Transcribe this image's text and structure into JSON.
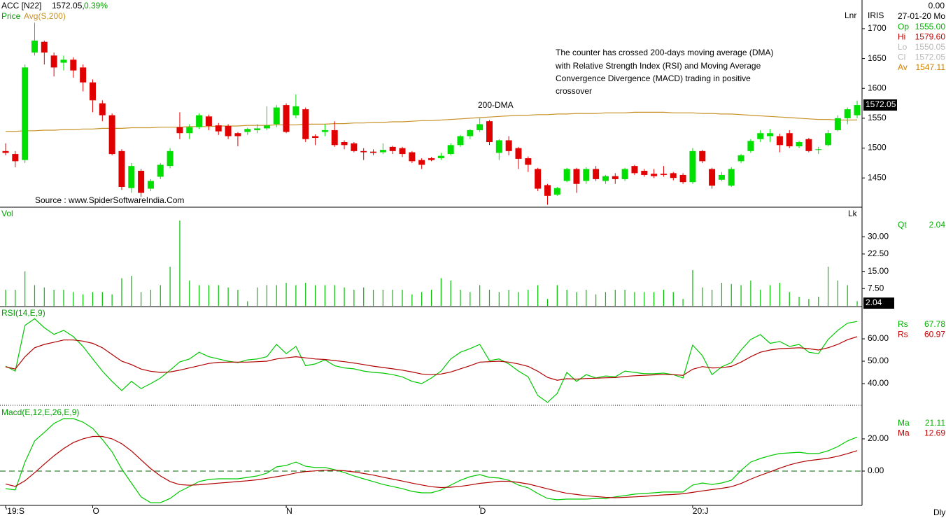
{
  "header": {
    "symbol": "ACC [N22]",
    "last": "1572.05,",
    "change": "0.39%",
    "axis_top": "Lnr",
    "axis_vol": "Lk",
    "period": "Dly"
  },
  "annotations": {
    "lines": [
      "The counter has crossed 200-days moving average (DMA)",
      "with Relative Strength Index (RSI) and Moving Average",
      "Convergence Divergence (MACD) trading in positive",
      "crossover"
    ],
    "dma_label": "200-DMA",
    "source": "Source : www.SpiderSoftwareIndia.Com",
    "price_tag": "1572.05",
    "vol_tag": "2.04"
  },
  "info": {
    "time": "0.00",
    "date": "27-01-20 Mo",
    "iris": "IRIS",
    "price_rows": [
      {
        "label": "Op",
        "value": "1555.00",
        "color": "#00b000"
      },
      {
        "label": "Hi",
        "value": "1579.60",
        "color": "#c00000"
      },
      {
        "label": "Lo",
        "value": "1550.05",
        "color": "#b8b8b8"
      },
      {
        "label": "Cl",
        "value": "1572.05",
        "color": "#b8b8b8"
      },
      {
        "label": "Av",
        "value": "1547.11",
        "color": "#d08000"
      }
    ],
    "vol_rows": [
      {
        "label": "Qt",
        "value": "2.04",
        "color": "#00b000"
      }
    ],
    "rsi_rows": [
      {
        "label": "Rs",
        "value": "67.78",
        "color": "#00b000"
      },
      {
        "label": "Rs",
        "value": "60.97",
        "color": "#c00000"
      }
    ],
    "macd_rows": [
      {
        "label": "Ma",
        "value": "21.11",
        "color": "#00b000"
      },
      {
        "label": "Ma",
        "value": "12.69",
        "color": "#c00000"
      }
    ]
  },
  "chart_data": [
    {
      "type": "candlestick",
      "title": "Price",
      "title_color": "#00a000",
      "up_color": "#00e000",
      "down_color": "#e00000",
      "categories": [
        "'19:S",
        null,
        null,
        null,
        null,
        null,
        null,
        null,
        null,
        "O",
        null,
        null,
        null,
        null,
        null,
        null,
        null,
        null,
        null,
        null,
        null,
        null,
        null,
        null,
        null,
        null,
        null,
        null,
        null,
        "N",
        null,
        null,
        null,
        null,
        null,
        null,
        null,
        null,
        null,
        null,
        null,
        null,
        null,
        null,
        null,
        null,
        null,
        null,
        null,
        "D",
        null,
        null,
        null,
        null,
        null,
        null,
        null,
        null,
        null,
        null,
        null,
        null,
        null,
        null,
        null,
        null,
        null,
        null,
        null,
        null,
        null,
        "20:J",
        null,
        null,
        null,
        null,
        null,
        null,
        null,
        null,
        null,
        null,
        null,
        null,
        null,
        null,
        null,
        null,
        null
      ],
      "open": [
        1495,
        1490,
        1480,
        1660,
        1678,
        1655,
        1643,
        1648,
        1635,
        1610,
        1575,
        1555,
        1495,
        1433,
        1462,
        1432,
        1452,
        1470,
        1535,
        1525,
        1535,
        1553,
        1538,
        1537,
        1525,
        1527,
        1530,
        1533,
        1540,
        1572,
        1555,
        1565,
        1520,
        1527,
        1530,
        1510,
        1508,
        1495,
        1494,
        1493,
        1502,
        1500,
        1493,
        1480,
        1483,
        1483,
        1490,
        1505,
        1520,
        1530,
        1545,
        1492,
        1513,
        1500,
        1483,
        1465,
        1438,
        1422,
        1445,
        1465,
        1445,
        1465,
        1445,
        1453,
        1448,
        1470,
        1462,
        1457,
        1457,
        1458,
        1455,
        1443,
        1495,
        1465,
        1447,
        1437,
        1478,
        1495,
        1515,
        1520,
        1520,
        1525,
        1503,
        1515,
        1497,
        1505,
        1530,
        1550,
        1555
      ],
      "high": [
        1508,
        1495,
        1640,
        1710,
        1680,
        1660,
        1655,
        1652,
        1640,
        1615,
        1580,
        1558,
        1498,
        1475,
        1465,
        1448,
        1475,
        1500,
        1560,
        1540,
        1558,
        1556,
        1542,
        1540,
        1527,
        1534,
        1540,
        1570,
        1572,
        1575,
        1590,
        1568,
        1523,
        1540,
        1545,
        1513,
        1510,
        1500,
        1498,
        1508,
        1504,
        1502,
        1495,
        1483,
        1485,
        1492,
        1508,
        1522,
        1532,
        1550,
        1547,
        1515,
        1520,
        1502,
        1486,
        1467,
        1440,
        1435,
        1467,
        1467,
        1468,
        1470,
        1455,
        1458,
        1467,
        1472,
        1465,
        1465,
        1470,
        1460,
        1458,
        1500,
        1497,
        1467,
        1460,
        1468,
        1490,
        1515,
        1530,
        1532,
        1524,
        1530,
        1512,
        1517,
        1502,
        1530,
        1555,
        1568,
        1579.6
      ],
      "low": [
        1488,
        1468,
        1475,
        1655,
        1640,
        1620,
        1630,
        1618,
        1595,
        1560,
        1545,
        1488,
        1430,
        1425,
        1418,
        1428,
        1448,
        1466,
        1515,
        1515,
        1532,
        1530,
        1522,
        1515,
        1503,
        1522,
        1525,
        1530,
        1535,
        1525,
        1550,
        1510,
        1505,
        1520,
        1502,
        1498,
        1493,
        1480,
        1488,
        1490,
        1490,
        1485,
        1475,
        1465,
        1478,
        1480,
        1488,
        1502,
        1515,
        1527,
        1505,
        1480,
        1488,
        1465,
        1460,
        1428,
        1405,
        1420,
        1443,
        1425,
        1440,
        1445,
        1440,
        1440,
        1445,
        1455,
        1452,
        1450,
        1452,
        1446,
        1440,
        1440,
        1475,
        1432,
        1445,
        1435,
        1475,
        1492,
        1510,
        1510,
        1493,
        1500,
        1500,
        1493,
        1490,
        1503,
        1528,
        1540,
        1550.05
      ],
      "close": [
        1492,
        1478,
        1635,
        1680,
        1660,
        1635,
        1648,
        1630,
        1610,
        1580,
        1555,
        1490,
        1435,
        1470,
        1425,
        1445,
        1472,
        1495,
        1525,
        1535,
        1555,
        1537,
        1528,
        1520,
        1520,
        1532,
        1533,
        1538,
        1568,
        1527,
        1570,
        1515,
        1517,
        1530,
        1505,
        1505,
        1495,
        1493,
        1492,
        1497,
        1495,
        1490,
        1478,
        1472,
        1480,
        1487,
        1505,
        1520,
        1530,
        1540,
        1510,
        1513,
        1495,
        1482,
        1472,
        1432,
        1420,
        1433,
        1465,
        1440,
        1465,
        1448,
        1453,
        1448,
        1465,
        1458,
        1455,
        1453,
        1455,
        1450,
        1443,
        1495,
        1478,
        1437,
        1455,
        1465,
        1488,
        1512,
        1525,
        1525,
        1505,
        1503,
        1510,
        1495,
        1498,
        1525,
        1550,
        1565,
        1572.05
      ],
      "overlay": {
        "name": "Avg(S,200)",
        "color": "#c8922a",
        "values": [
          1528,
          1528,
          1529,
          1529,
          1530,
          1530,
          1531,
          1531,
          1532,
          1532,
          1533,
          1533,
          1533,
          1534,
          1534,
          1534,
          1535,
          1535,
          1535,
          1536,
          1536,
          1536,
          1537,
          1537,
          1537,
          1538,
          1538,
          1538,
          1539,
          1539,
          1539,
          1540,
          1540,
          1540,
          1541,
          1541,
          1542,
          1542,
          1543,
          1543,
          1544,
          1544,
          1545,
          1546,
          1546,
          1547,
          1548,
          1549,
          1550,
          1551,
          1552,
          1553,
          1554,
          1555,
          1555,
          1556,
          1556,
          1557,
          1557,
          1558,
          1558,
          1558,
          1559,
          1559,
          1559,
          1560,
          1560,
          1560,
          1560,
          1559,
          1559,
          1559,
          1558,
          1558,
          1557,
          1557,
          1556,
          1555,
          1554,
          1553,
          1552,
          1551,
          1550,
          1549,
          1548,
          1548,
          1547,
          1547,
          1547.11
        ]
      },
      "ylim": [
        1401,
        1748
      ],
      "yticks": [
        1450,
        1500,
        1550,
        1600,
        1650,
        1700
      ]
    },
    {
      "type": "bar",
      "title": "Vol",
      "title_color": "#00a000",
      "color": "#00c000",
      "values": [
        7,
        7,
        15,
        9,
        8,
        7,
        7,
        6,
        5,
        6,
        6,
        5,
        12,
        13,
        6,
        7,
        9,
        17,
        37,
        11,
        9,
        9,
        9,
        8,
        7,
        2,
        8,
        9,
        9,
        10,
        9,
        10,
        9,
        9,
        9,
        8,
        7,
        8,
        7,
        7,
        7,
        7,
        5,
        6,
        7,
        12,
        11,
        7,
        6,
        9,
        7,
        6,
        7,
        6,
        7,
        9,
        3,
        9,
        7,
        6,
        7,
        5,
        6,
        7,
        7,
        6,
        6,
        6,
        7,
        6,
        3,
        15.5,
        8,
        7,
        10,
        9.5,
        9,
        11,
        7,
        9,
        10,
        6,
        4,
        3,
        4,
        17,
        11,
        9,
        2.04
      ],
      "ylim": [
        0,
        42.8
      ],
      "yticks": [
        {
          "value": 7.5,
          "label": "7.50"
        },
        {
          "value": 15,
          "label": "15.00"
        },
        {
          "value": 22.5,
          "label": "22.50"
        },
        {
          "value": 30,
          "label": "30.00"
        }
      ]
    },
    {
      "type": "line",
      "title": "RSI(14,E,9)",
      "title_color": "#00a000",
      "series": [
        {
          "name": "Rs",
          "color": "#00c800",
          "values": [
            47.8,
            45.6,
            66,
            69,
            65,
            62,
            63.8,
            61,
            56.6,
            51,
            45.6,
            41,
            36.9,
            41,
            37.8,
            40,
            42.5,
            46,
            49.7,
            51,
            54,
            52,
            51,
            50,
            49.4,
            50.6,
            51,
            52,
            57.5,
            53.4,
            56.6,
            48,
            48.8,
            50.6,
            48,
            47,
            46.6,
            45.6,
            45,
            44.7,
            44,
            43,
            41,
            40,
            42.5,
            45.6,
            51,
            54,
            55.6,
            57.5,
            50.3,
            51,
            48.8,
            45.6,
            43,
            34.7,
            31.6,
            35.6,
            45,
            41,
            44,
            42.5,
            43.4,
            43,
            45.6,
            45,
            44.4,
            44.4,
            44.7,
            44,
            42.5,
            57.2,
            52.5,
            44,
            47.5,
            49.4,
            55,
            59.7,
            61.9,
            58,
            58.8,
            56.6,
            57.5,
            54,
            53.4,
            59.7,
            63.8,
            67,
            67.78
          ]
        },
        {
          "name": "Rs",
          "color": "#b00000",
          "values": [
            47.5,
            46.5,
            52,
            56,
            57.5,
            58.5,
            59.5,
            59.5,
            59,
            58,
            56,
            53,
            50,
            48.5,
            46.5,
            45.5,
            45,
            45.2,
            46,
            47,
            48,
            49,
            49.5,
            49.6,
            49.6,
            49.6,
            49.8,
            50,
            51,
            51.5,
            52,
            51.5,
            51,
            50.8,
            50.3,
            49.8,
            49.2,
            48.5,
            47.8,
            47.2,
            46.6,
            46,
            45.2,
            44.3,
            44,
            44.3,
            45.2,
            46.6,
            48,
            49.6,
            49.8,
            50,
            49.6,
            48.8,
            47.7,
            45.5,
            42.8,
            41.5,
            42.2,
            42,
            42.3,
            42.4,
            42.6,
            42.7,
            43.2,
            43.5,
            43.7,
            43.9,
            44,
            44,
            43.7,
            46.4,
            47.6,
            47,
            47.1,
            47.7,
            49.6,
            52,
            54,
            55,
            55.6,
            55.8,
            56,
            55.6,
            55,
            56,
            57.5,
            59.6,
            60.97
          ]
        }
      ],
      "ylim": [
        30,
        74.4
      ],
      "yticks": [
        {
          "value": 40,
          "label": "40.00"
        },
        {
          "value": 50,
          "label": "50.00"
        },
        {
          "value": 60,
          "label": "60.00"
        }
      ]
    },
    {
      "type": "line",
      "title": "Macd(E,12,E,26,E,9)",
      "title_color": "#00a000",
      "zero_line": true,
      "series": [
        {
          "name": "Ma",
          "color": "#00c800",
          "values": [
            -10.9,
            -11.7,
            5.6,
            18.7,
            24,
            29.6,
            32.6,
            32.6,
            30.4,
            26.5,
            19.6,
            12,
            1.3,
            -7.4,
            -16,
            -19.6,
            -19.6,
            -17,
            -12.6,
            -9.6,
            -6.5,
            -5.2,
            -4.8,
            -4.8,
            -4.8,
            -3.9,
            -3,
            -1.3,
            2.6,
            3.5,
            5.6,
            3,
            2.2,
            2.2,
            0.9,
            -0.9,
            -3,
            -4.8,
            -6.5,
            -8.3,
            -9.6,
            -10.9,
            -12.6,
            -13.5,
            -13.5,
            -11.7,
            -8.7,
            -5.7,
            -3.5,
            -2.2,
            -3.9,
            -4.3,
            -5.7,
            -8.7,
            -10.4,
            -13.9,
            -17,
            -17.8,
            -17.4,
            -17.4,
            -17.4,
            -17,
            -17,
            -16,
            -15.2,
            -14.3,
            -13.9,
            -13.5,
            -13,
            -13,
            -13,
            -8.7,
            -7.4,
            -8.3,
            -7.4,
            -5.7,
            0.4,
            5.6,
            7.8,
            9.6,
            10.9,
            11.3,
            11.7,
            10.9,
            10.9,
            12.6,
            15.2,
            18.7,
            21.11
          ]
        },
        {
          "name": "Ma",
          "color": "#b00000",
          "values": [
            -8,
            -9.5,
            -6,
            -1,
            4.3,
            9.5,
            14,
            17.7,
            20,
            21.5,
            21.5,
            20,
            17,
            12.5,
            7,
            1.5,
            -3,
            -6.5,
            -8.4,
            -8.8,
            -8.5,
            -8,
            -7.5,
            -7,
            -6.5,
            -6,
            -5.4,
            -4.5,
            -3.5,
            -2.5,
            -1.2,
            -0.3,
            0.1,
            0.5,
            0.5,
            0.2,
            -0.5,
            -1.5,
            -2.5,
            -3.8,
            -5,
            -6.2,
            -7.5,
            -8.6,
            -9.7,
            -10.2,
            -10,
            -9.5,
            -8.6,
            -7.6,
            -7,
            -6.3,
            -6.3,
            -7,
            -8,
            -9.5,
            -11,
            -12.5,
            -13.8,
            -14.5,
            -15.3,
            -15.8,
            -16.3,
            -16.5,
            -16.3,
            -16,
            -15.7,
            -15.2,
            -14.8,
            -14.5,
            -14.1,
            -13.2,
            -12.3,
            -11.5,
            -10.7,
            -9.7,
            -7.7,
            -5,
            -2.6,
            -0.5,
            1.8,
            3.8,
            5.4,
            6.5,
            7.2,
            8,
            9.2,
            10.8,
            12.69
          ]
        }
      ],
      "ylim": [
        -21.3,
        40.4
      ],
      "yticks": [
        {
          "value": 0,
          "label": "0.00"
        },
        {
          "value": 20,
          "label": "20.00"
        }
      ]
    }
  ]
}
